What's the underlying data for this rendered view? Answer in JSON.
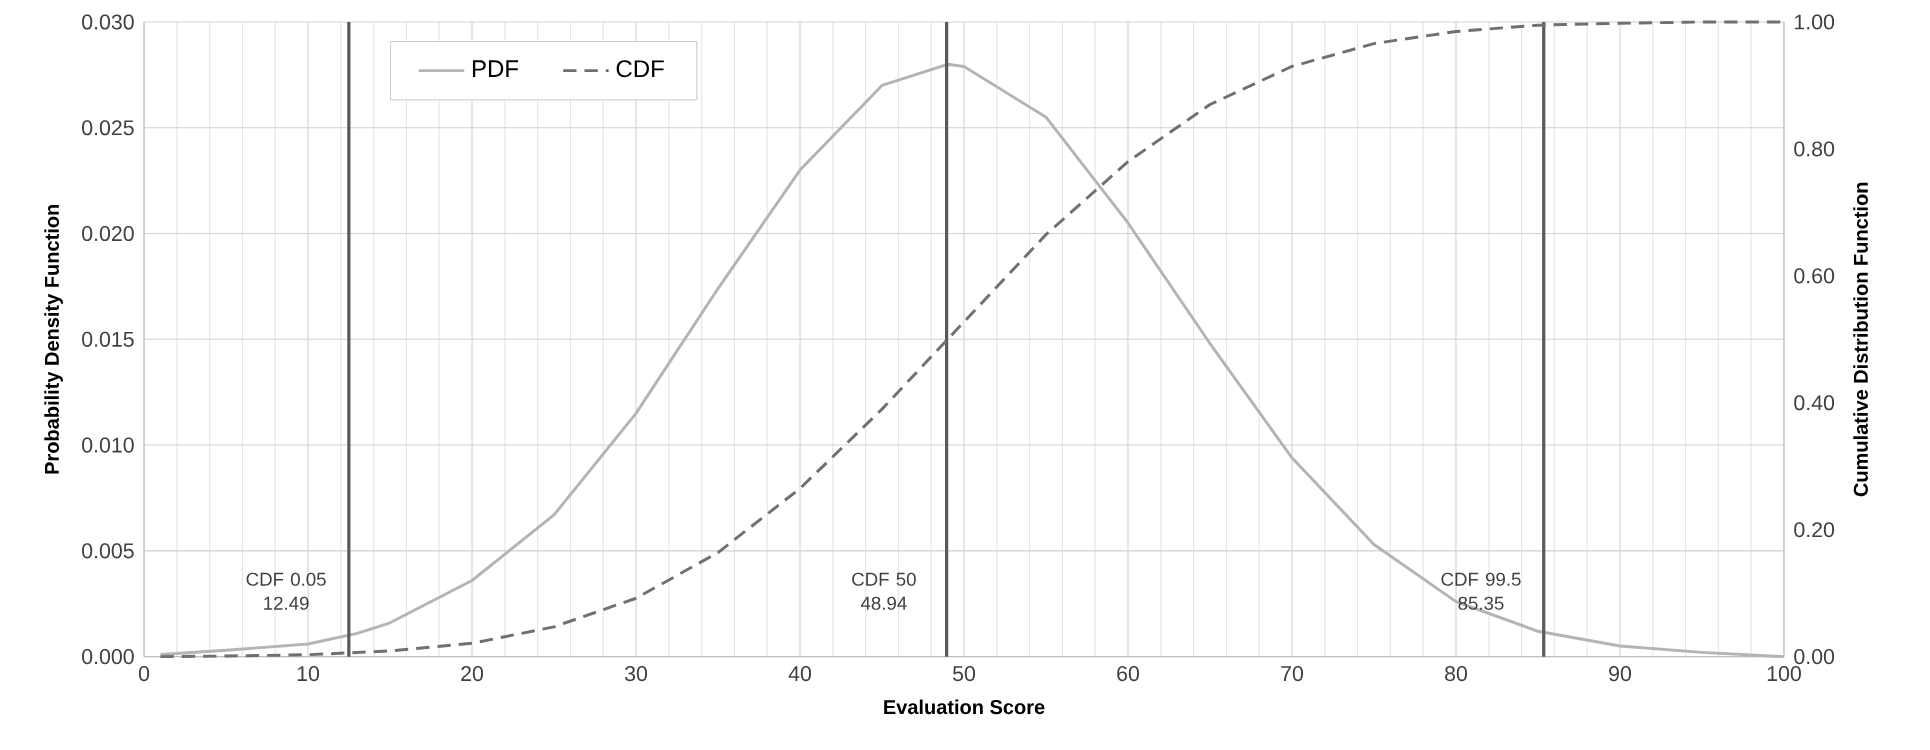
{
  "chart_data": {
    "type": "line",
    "xlabel": "Evaluation Score",
    "ylabel": "Probability Density Function",
    "y2label": "Cumulative Distribution Function",
    "xlim": [
      0,
      100
    ],
    "xticks": [
      0,
      10,
      20,
      30,
      40,
      50,
      60,
      70,
      80,
      90,
      100
    ],
    "ylim": [
      0,
      0.03
    ],
    "yticks": [
      {
        "value": 0,
        "label": "0.000"
      },
      {
        "value": 0.005,
        "label": "0.005"
      },
      {
        "value": 0.01,
        "label": "0.010"
      },
      {
        "value": 0.015,
        "label": "0.015"
      },
      {
        "value": 0.02,
        "label": "0.020"
      },
      {
        "value": 0.025,
        "label": "0.025"
      },
      {
        "value": 0.03,
        "label": "0.030"
      }
    ],
    "y2lim": [
      0,
      1
    ],
    "y2ticks": [
      {
        "value": 0,
        "label": "0.00"
      },
      {
        "value": 0.2,
        "label": "0.20"
      },
      {
        "value": 0.4,
        "label": "0.40"
      },
      {
        "value": 0.6,
        "label": "0.60"
      },
      {
        "value": 0.8,
        "label": "0.80"
      },
      {
        "value": 1,
        "label": "1.00"
      }
    ],
    "grid": true,
    "legend": "top left",
    "series": [
      {
        "name": "PDF",
        "color": "#b4b4b4",
        "line_style": "solid",
        "x": [
          1,
          5,
          10,
          13,
          15,
          20,
          25,
          30,
          35,
          40,
          45,
          49,
          50,
          55,
          60,
          65,
          70,
          75,
          80,
          85,
          90,
          95,
          100
        ],
        "values": [
          0.0001,
          0.0003,
          0.0006,
          0.0011,
          0.0016,
          0.0036,
          0.0067,
          0.0115,
          0.0174,
          0.023,
          0.027,
          0.028,
          0.0279,
          0.0255,
          0.0205,
          0.0148,
          0.0094,
          0.0053,
          0.0026,
          0.0012,
          0.0005,
          0.0002,
          0.0
        ]
      },
      {
        "name": "CDF",
        "color": "#707070",
        "line_style": "dashed",
        "axis": "y2",
        "x": [
          1,
          5,
          10,
          15,
          20,
          25,
          30,
          35,
          40,
          45,
          49,
          55,
          60,
          65,
          70,
          75,
          80,
          85,
          90,
          95,
          100
        ],
        "values": [
          0.0,
          0.001,
          0.003,
          0.009,
          0.021,
          0.047,
          0.092,
          0.164,
          0.265,
          0.39,
          0.5,
          0.665,
          0.78,
          0.87,
          0.93,
          0.966,
          0.985,
          0.995,
          0.998,
          1.0,
          1.0
        ]
      }
    ],
    "ref_lines": [
      {
        "axis": "x",
        "value": 12.49,
        "label": "CDF 0.05 12.49",
        "color": "#595959"
      },
      {
        "axis": "x",
        "value": 48.94,
        "label": "CDF 50 48.94",
        "color": "#595959"
      },
      {
        "axis": "x",
        "value": 85.35,
        "label": "CDF 99.5 85.35",
        "color": "#595959"
      }
    ]
  }
}
